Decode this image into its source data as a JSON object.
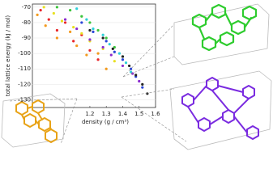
{
  "chart_data": {
    "type": "scatter",
    "xlabel": "density (g / cm³)",
    "ylabel": "total lattice energy (kJ / mol)",
    "xlim": [
      0.85,
      1.6
    ],
    "xticks": [
      1.2,
      1.3,
      1.4,
      1.5,
      1.6
    ],
    "ylim": [
      -135,
      -68
    ],
    "yticks": [
      -70,
      -80,
      -90,
      -100,
      -110,
      -120,
      -130
    ],
    "series": [
      {
        "color": "#e8262a",
        "x": [
          0.9,
          0.95,
          1.0,
          1.05,
          1.1,
          1.15,
          1.2,
          1.25
        ],
        "values": [
          -72,
          -78,
          -85,
          -80,
          -92,
          -88,
          -98,
          -104
        ]
      },
      {
        "color": "#f39a1e",
        "x": [
          0.88,
          0.93,
          1.0,
          1.08,
          1.12,
          1.18,
          1.25,
          1.3
        ],
        "values": [
          -75,
          -82,
          -90,
          -86,
          -95,
          -101,
          -100,
          -110
        ]
      },
      {
        "color": "#e8e020",
        "x": [
          0.92,
          0.98,
          1.03,
          1.1,
          1.15,
          1.2,
          1.28,
          1.35
        ],
        "values": [
          -70,
          -74,
          -79,
          -83,
          -87,
          -92,
          -97,
          -105
        ]
      },
      {
        "color": "#3cc43c",
        "x": [
          1.0,
          1.08,
          1.15,
          1.2,
          1.25,
          1.3,
          1.35,
          1.4
        ],
        "values": [
          -70,
          -72,
          -76,
          -80,
          -85,
          -90,
          -96,
          -102
        ]
      },
      {
        "color": "#2fd0d8",
        "x": [
          1.12,
          1.18,
          1.22,
          1.28,
          1.32,
          1.38,
          1.42,
          1.45
        ],
        "values": [
          -71,
          -78,
          -84,
          -88,
          -94,
          -100,
          -106,
          -112
        ]
      },
      {
        "color": "#2a45d8",
        "x": [
          1.15,
          1.22,
          1.3,
          1.35,
          1.4,
          1.45,
          1.48,
          1.52
        ],
        "values": [
          -80,
          -86,
          -92,
          -99,
          -104,
          -110,
          -115,
          -122
        ]
      },
      {
        "color": "#8a2bd0",
        "x": [
          1.05,
          1.12,
          1.2,
          1.28,
          1.33,
          1.4,
          1.46,
          1.5
        ],
        "values": [
          -78,
          -84,
          -91,
          -96,
          -101,
          -108,
          -113,
          -118
        ]
      },
      {
        "color": "#222222",
        "x": [
          1.2,
          1.28,
          1.34,
          1.4,
          1.44,
          1.48,
          1.52,
          1.55
        ],
        "values": [
          -85,
          -90,
          -97,
          -102,
          -108,
          -114,
          -120,
          -126
        ]
      }
    ]
  }
}
